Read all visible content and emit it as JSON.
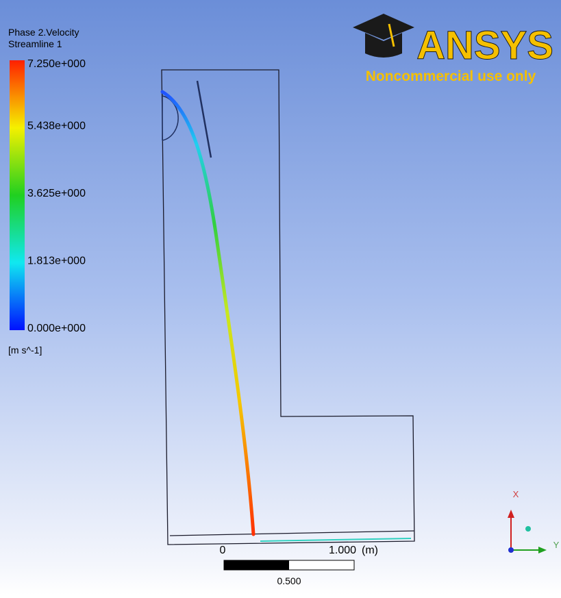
{
  "legend": {
    "title": "Phase 2.Velocity",
    "subtitle": "Streamline 1",
    "labels": [
      "7.250e+000",
      "5.438e+000",
      "3.625e+000",
      "1.813e+000",
      "0.000e+000"
    ],
    "unit": "[m s^-1]"
  },
  "logo": {
    "name": "ANSYS",
    "note": "Noncommercial use only"
  },
  "scale": {
    "zero": "0",
    "end": "1.000",
    "unit": "(m)",
    "half": "0.500"
  },
  "triad": {
    "x": "X",
    "y": "Y"
  }
}
